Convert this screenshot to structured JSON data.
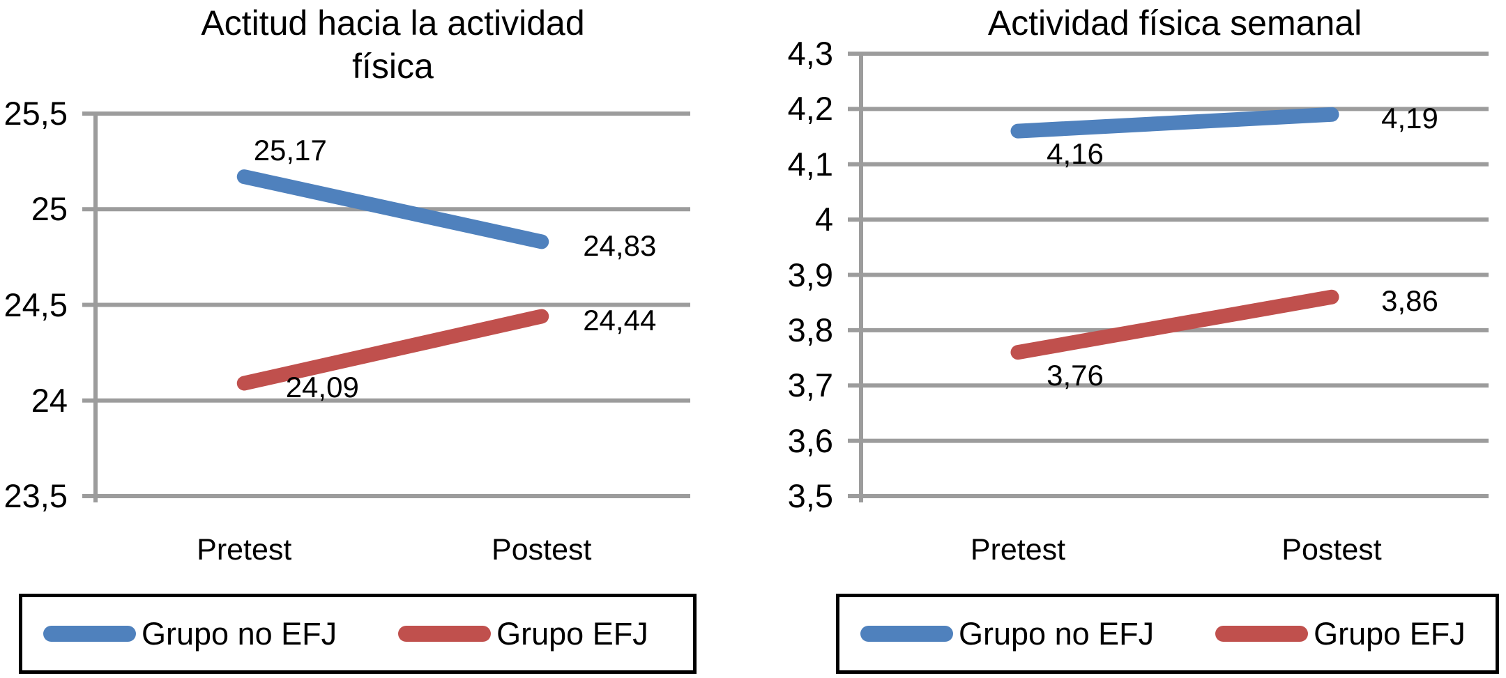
{
  "colors": {
    "background": "#ffffff",
    "gridline": "#9c9c9c",
    "axis_line": "#9c9c9c",
    "text": "#000000",
    "legend_border": "#000000",
    "series_blue": "#4F81BD",
    "series_red": "#C0504D"
  },
  "legend": {
    "entries": [
      {
        "label": "Grupo no EFJ",
        "color": "#4F81BD",
        "swatch": "rounded-line-swatch"
      },
      {
        "label": "Grupo EFJ",
        "color": "#C0504D",
        "swatch": "rounded-line-swatch"
      }
    ]
  },
  "chart_data": [
    {
      "type": "line",
      "title": "Actitud hacia la actividad física",
      "title_lines": [
        "Actitud hacia la actividad",
        "física"
      ],
      "categories": [
        "Pretest",
        "Postest"
      ],
      "xlabel": "",
      "ylabel": "",
      "ylim": [
        23.5,
        25.5
      ],
      "ytick_values": [
        23.5,
        24,
        24.5,
        25,
        25.5
      ],
      "ytick_labels": [
        "23,5",
        "24",
        "24,5",
        "25",
        "25,5"
      ],
      "grid": true,
      "legend_position": "bottom",
      "series": [
        {
          "name": "Grupo no EFJ",
          "color": "#4F81BD",
          "values": [
            25.17,
            24.83
          ],
          "value_labels": [
            "25,17",
            "24,83"
          ],
          "label_placements": [
            "above-right",
            "right"
          ]
        },
        {
          "name": "Grupo EFJ",
          "color": "#C0504D",
          "values": [
            24.09,
            24.44
          ],
          "value_labels": [
            "24,09",
            "24,44"
          ],
          "label_placements": [
            "right",
            "right"
          ]
        }
      ]
    },
    {
      "type": "line",
      "title": "Actividad física semanal",
      "title_lines": [
        "Actividad física semanal"
      ],
      "categories": [
        "Pretest",
        "Postest"
      ],
      "xlabel": "",
      "ylabel": "",
      "ylim": [
        3.5,
        4.3
      ],
      "ytick_values": [
        3.5,
        3.6,
        3.7,
        3.8,
        3.9,
        4,
        4.1,
        4.2,
        4.3
      ],
      "ytick_labels": [
        "3,5",
        "3,6",
        "3,7",
        "3,8",
        "3,9",
        "4",
        "4,1",
        "4,2",
        "4,3"
      ],
      "grid": true,
      "legend_position": "bottom",
      "series": [
        {
          "name": "Grupo no EFJ",
          "color": "#4F81BD",
          "values": [
            4.16,
            4.19
          ],
          "value_labels": [
            "4,16",
            "4,19"
          ],
          "label_placements": [
            "below-right",
            "right"
          ]
        },
        {
          "name": "Grupo EFJ",
          "color": "#C0504D",
          "values": [
            3.76,
            3.86
          ],
          "value_labels": [
            "3,76",
            "3,86"
          ],
          "label_placements": [
            "below-right",
            "right"
          ]
        }
      ]
    }
  ]
}
